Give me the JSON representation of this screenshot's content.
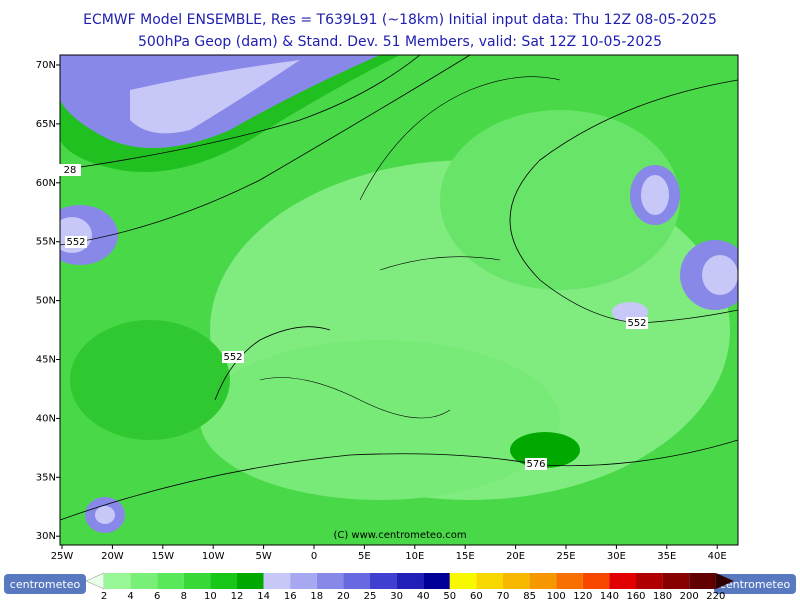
{
  "header": {
    "title": "ECMWF Model ENSEMBLE, Res = T639L91 (~18km)  Initial input data: Thu 12Z 08-05-2025",
    "subtitle": "500hPa Geop (dam) & Stand. Dev.   51 Members, valid: Sat 12Z 10-05-2025"
  },
  "map": {
    "lat_labels": [
      "70N",
      "65N",
      "60N",
      "55N",
      "50N",
      "45N",
      "40N",
      "35N",
      "30N"
    ],
    "lon_labels": [
      "25W",
      "20W",
      "15W",
      "10W",
      "5W",
      "0",
      "5E",
      "10E",
      "15E",
      "20E",
      "25E",
      "30E",
      "35E",
      "40E"
    ],
    "contour_labels": [
      "28",
      "552",
      "552",
      "552",
      "576"
    ],
    "copyright": "(C) www.centrometeo.com"
  },
  "legend": {
    "levels": [
      2,
      4,
      6,
      8,
      10,
      12,
      14,
      16,
      18,
      20,
      25,
      30,
      40,
      50,
      60,
      70,
      85,
      100,
      120,
      140,
      160,
      180,
      200,
      220
    ],
    "colors": [
      "#98f898",
      "#78f078",
      "#58e858",
      "#38d838",
      "#18c818",
      "#00a800",
      "#c8c8f8",
      "#a8a8f0",
      "#8888e8",
      "#6868e0",
      "#4040d0",
      "#2020b8",
      "#000098",
      "#f8f800",
      "#f8d800",
      "#f8b800",
      "#f89800",
      "#f87000",
      "#f84800",
      "#e00000",
      "#b00000",
      "#880000",
      "#600000"
    ]
  },
  "logos": {
    "left": "centrometeo",
    "right": "centrometeo"
  }
}
